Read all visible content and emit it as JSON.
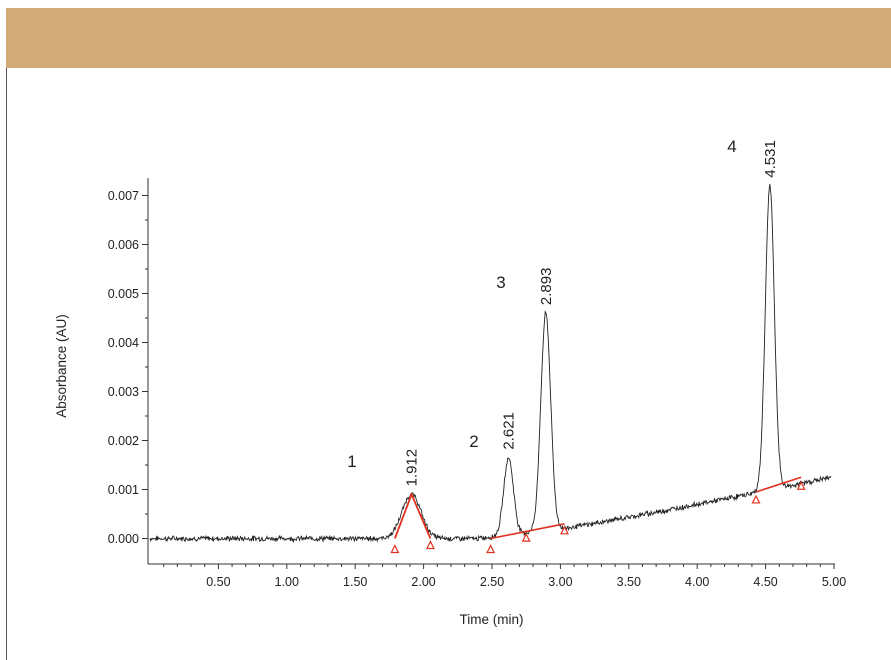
{
  "header": {
    "color": "#d2aa78"
  },
  "chart_data": {
    "type": "line",
    "xlabel": "Time (min)",
    "ylabel": "Absorbance (AU)",
    "xlim": [
      0.0,
      5.0
    ],
    "ylim": [
      -0.0005,
      0.0073
    ],
    "x_ticks": [
      "0.50",
      "1.00",
      "1.50",
      "2.00",
      "2.50",
      "3.00",
      "3.50",
      "4.00",
      "4.50",
      "5.00"
    ],
    "x_tick_values": [
      0.5,
      1.0,
      1.5,
      2.0,
      2.5,
      3.0,
      3.5,
      4.0,
      4.5,
      5.0
    ],
    "y_ticks": [
      "0.000",
      "0.001",
      "0.002",
      "0.003",
      "0.004",
      "0.005",
      "0.006",
      "0.007"
    ],
    "y_tick_values": [
      0.0,
      0.001,
      0.002,
      0.003,
      0.004,
      0.005,
      0.006,
      0.007
    ],
    "trace_color": "#222222",
    "integration_color": "#e0321e",
    "peaks": [
      {
        "number": "1",
        "rt_label": "1.912",
        "rt": 1.912,
        "height": 0.0009,
        "start": 1.79,
        "end": 2.05
      },
      {
        "number": "2",
        "rt_label": "2.621",
        "rt": 2.621,
        "height": 0.00165,
        "start": 2.49,
        "end": 2.75
      },
      {
        "number": "3",
        "rt_label": "2.893",
        "rt": 2.893,
        "height": 0.0046,
        "start": 2.75,
        "end": 3.03
      },
      {
        "number": "4",
        "rt_label": "4.531",
        "rt": 4.531,
        "height": 0.0072,
        "start": 4.43,
        "end": 4.76
      }
    ],
    "baseline_segments": [
      {
        "x": [
          2.49,
          3.03
        ],
        "y": [
          0.0,
          0.0003
        ]
      },
      {
        "x": [
          4.43,
          4.76
        ],
        "y": [
          0.00095,
          0.00125
        ]
      }
    ],
    "grid": false
  }
}
